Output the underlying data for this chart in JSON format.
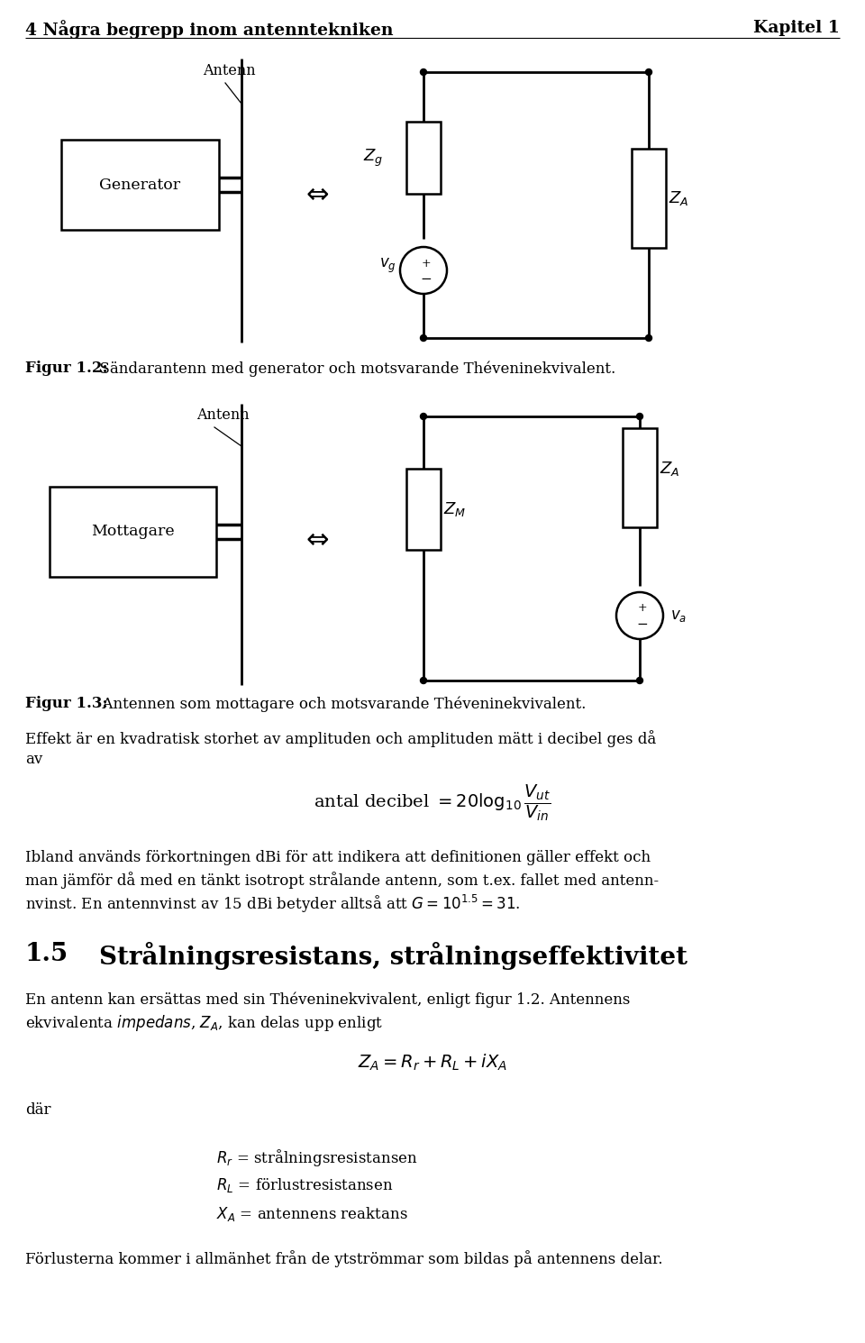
{
  "header_left": "4 Några begrepp inom antenntekniken",
  "header_right": "Kapitel 1",
  "fig1_caption_bold": "Figur 1.2:",
  "fig1_caption_rest": "  Sändarantenn med generator och motsvarande Théveninekvivalent.",
  "fig2_caption_bold": "Figur 1.3:",
  "fig2_caption_rest": "  Antennen som mottagare och motsvarande Théveninekvivalent.",
  "para1_line1": "Effekt är en kvadratisk storhet av amplituden och amplituden mätt i decibel ges då",
  "para1_line2": "av",
  "para2_line1": "Ibland används förkortningen dBi för att indikera att definitionen gäller effekt och",
  "para2_line2": "man jämför då med en tänkt isotropt strålande antenn, som t.ex. fallet med antenn-",
  "para2_line3": "nvinst. En antennvinst av 15 dBi betyder alltså att $G = 10^{1.5} = 31$.",
  "section_num": "1.5",
  "section_title": "Strålningsresistans, strålningseffektivitet",
  "para3_line1": "En antenn kan ersättas med sin Théveninekvivalent, enligt figur 1.2. Antennens",
  "para3_line2": "ekvivalenta $\\mathit{impedans}$, $Z_A$, kan delas upp enligt",
  "dar": "där",
  "def1": "$R_r$ = strålningsresistansen",
  "def2": "$R_L$ = förlustresistansen",
  "def3": "$X_A$ = antennens reaktans",
  "para4": "Förlusterna kommer i allmänhet från de ytströmmar som bildas på antennens delar.",
  "bg_color": "#ffffff",
  "text_color": "#000000"
}
